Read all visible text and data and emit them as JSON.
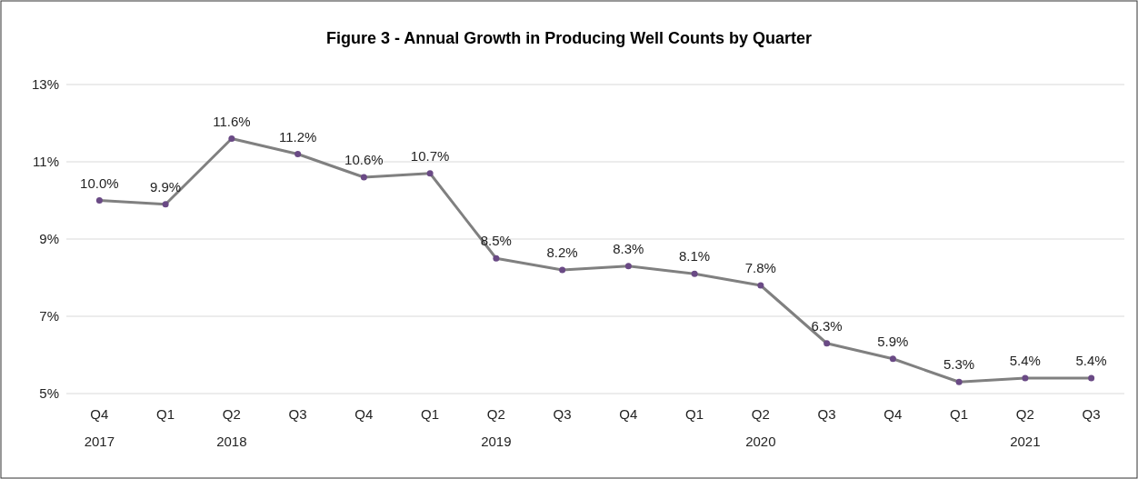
{
  "chart_data": {
    "type": "line",
    "title": "Figure 3 - Annual Growth in Producing Well Counts by Quarter",
    "categories": [
      "Q4\n2017",
      "Q1",
      "Q2\n2018",
      "Q3",
      "Q4",
      "Q1",
      "Q2\n2019",
      "Q3",
      "Q4",
      "Q1",
      "Q2\n2020",
      "Q3",
      "Q4",
      "Q1",
      "Q2\n2021",
      "Q3"
    ],
    "series": [
      {
        "color": "#808080",
        "values": [
          10.0,
          9.9,
          11.6,
          11.2,
          10.6,
          10.7,
          8.5,
          8.2,
          8.3,
          8.1,
          7.8,
          6.3,
          5.9,
          5.3,
          5.4,
          5.4
        ],
        "value_labels": [
          "10.0%",
          "9.9%",
          "11.6%",
          "11.2%",
          "10.6%",
          "10.7%",
          "8.5%",
          "8.2%",
          "8.3%",
          "8.1%",
          "7.8%",
          "6.3%",
          "5.9%",
          "5.3%",
          "5.4%",
          "5.4%"
        ]
      }
    ],
    "ylim": [
      5,
      13
    ],
    "yticks": [
      {
        "value": 5,
        "label": "5%"
      },
      {
        "value": 7,
        "label": "7%"
      },
      {
        "value": 9,
        "label": "9%"
      },
      {
        "value": 11,
        "label": "11%"
      },
      {
        "value": 13,
        "label": "13%"
      }
    ],
    "grid": "y",
    "marker": "circle",
    "line_style": "solid"
  }
}
